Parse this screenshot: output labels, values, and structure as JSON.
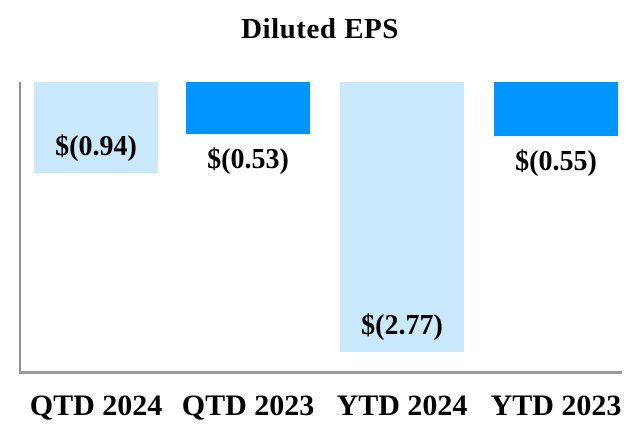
{
  "chart_data": {
    "type": "bar",
    "title": "Diluted EPS",
    "categories": [
      "QTD 2024",
      "QTD 2023",
      "YTD 2024",
      "YTD 2023"
    ],
    "values": [
      -0.94,
      -0.53,
      -2.77,
      -0.55
    ],
    "labels": [
      "$(0.94)",
      "$(0.53)",
      "$(2.77)",
      "$(0.55)"
    ],
    "fills": [
      "light",
      "dark",
      "light",
      "dark"
    ],
    "label_placement": [
      "inside-end",
      "outside-end",
      "inside-end",
      "outside-end"
    ],
    "colors": {
      "light": "#cae9fc",
      "dark": "#0095ff"
    },
    "axis_color_vertical": "#8e8e8e",
    "axis_color_horizontal": "#9a9a9a",
    "text_color": "#000000",
    "xlabel": "",
    "ylabel": "",
    "ylim": [
      -3,
      0
    ],
    "baseline": 0,
    "grid": false,
    "legend": false,
    "bar_orientation": "vertical-negative-from-top"
  }
}
